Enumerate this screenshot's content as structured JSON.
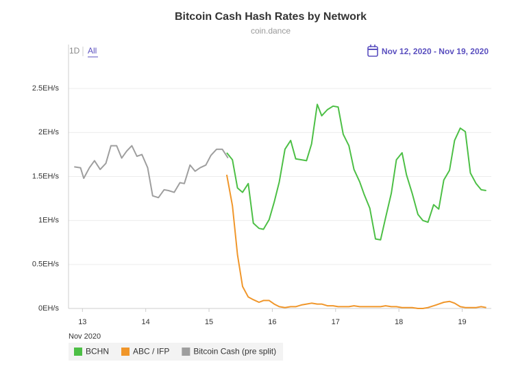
{
  "chart_data": {
    "type": "line",
    "title": "Bitcoin Cash Hash Rates by Network",
    "subtitle": "coin.dance",
    "range_buttons": [
      "1D",
      "All"
    ],
    "date_range": "Nov 12, 2020 - Nov 19, 2020",
    "x_label": "Nov 2020",
    "xlim": [
      12.78,
      19.46
    ],
    "xticks": [
      13,
      14,
      15,
      16,
      17,
      18,
      19
    ],
    "ylim": [
      0,
      3
    ],
    "yticks": [
      {
        "value": 0,
        "label": "0EH/s"
      },
      {
        "value": 0.5,
        "label": "0.5EH/s"
      },
      {
        "value": 1,
        "label": "1EH/s"
      },
      {
        "value": 1.5,
        "label": "1.5EH/s"
      },
      {
        "value": 2,
        "label": "2EH/s"
      },
      {
        "value": 2.5,
        "label": "2.5EH/s"
      }
    ],
    "grid": true,
    "legend": "bottom-left",
    "series": [
      {
        "name": "BCHN",
        "color": "#4cbf45",
        "x": [
          15.28,
          15.37,
          15.45,
          15.53,
          15.62,
          15.7,
          15.79,
          15.86,
          15.95,
          16.03,
          16.11,
          16.2,
          16.29,
          16.37,
          16.46,
          16.54,
          16.62,
          16.71,
          16.78,
          16.87,
          16.96,
          17.04,
          17.12,
          17.21,
          17.29,
          17.38,
          17.45,
          17.54,
          17.63,
          17.71,
          17.79,
          17.88,
          17.96,
          18.05,
          18.12,
          18.21,
          18.3,
          18.38,
          18.46,
          18.55,
          18.63,
          18.71,
          18.8,
          18.88,
          18.97,
          19.05,
          19.13,
          19.22,
          19.3,
          19.38
        ],
        "values": [
          1.77,
          1.69,
          1.37,
          1.32,
          1.42,
          0.97,
          0.91,
          0.9,
          1.01,
          1.21,
          1.44,
          1.81,
          1.91,
          1.7,
          1.69,
          1.68,
          1.87,
          2.32,
          2.19,
          2.26,
          2.3,
          2.29,
          1.98,
          1.85,
          1.58,
          1.44,
          1.3,
          1.14,
          0.79,
          0.78,
          1.03,
          1.31,
          1.69,
          1.77,
          1.52,
          1.31,
          1.07,
          1.0,
          0.98,
          1.18,
          1.13,
          1.46,
          1.57,
          1.91,
          2.05,
          2.01,
          1.54,
          1.42,
          1.35,
          1.34
        ]
      },
      {
        "name": "ABC / IFP",
        "color": "#f0962a",
        "x": [
          15.28,
          15.37,
          15.45,
          15.53,
          15.62,
          15.7,
          15.79,
          15.86,
          15.95,
          16.03,
          16.11,
          16.2,
          16.29,
          16.37,
          16.46,
          16.54,
          16.62,
          16.71,
          16.78,
          16.87,
          16.96,
          17.04,
          17.12,
          17.21,
          17.29,
          17.38,
          17.45,
          17.54,
          17.63,
          17.71,
          17.79,
          17.88,
          17.96,
          18.05,
          18.12,
          18.21,
          18.3,
          18.38,
          18.46,
          18.55,
          18.63,
          18.71,
          18.8,
          18.88,
          18.97,
          19.05,
          19.13,
          19.22,
          19.3,
          19.38
        ],
        "values": [
          1.52,
          1.17,
          0.61,
          0.25,
          0.13,
          0.1,
          0.07,
          0.09,
          0.09,
          0.05,
          0.02,
          0.01,
          0.02,
          0.02,
          0.04,
          0.05,
          0.06,
          0.05,
          0.05,
          0.03,
          0.03,
          0.02,
          0.02,
          0.02,
          0.03,
          0.02,
          0.02,
          0.02,
          0.02,
          0.02,
          0.03,
          0.02,
          0.02,
          0.01,
          0.01,
          0.01,
          0,
          0,
          0.01,
          0.03,
          0.05,
          0.07,
          0.08,
          0.06,
          0.02,
          0.01,
          0.01,
          0.01,
          0.02,
          0.01
        ]
      },
      {
        "name": "Bitcoin Cash (pre split)",
        "color": "#9e9e9e",
        "x": [
          12.87,
          12.97,
          13.02,
          13.11,
          13.19,
          13.28,
          13.37,
          13.45,
          13.54,
          13.62,
          13.7,
          13.78,
          13.86,
          13.94,
          14.03,
          14.11,
          14.2,
          14.29,
          14.36,
          14.45,
          14.54,
          14.61,
          14.7,
          14.78,
          14.86,
          14.95,
          15.03,
          15.12,
          15.21,
          15.3
        ],
        "values": [
          1.61,
          1.6,
          1.48,
          1.6,
          1.68,
          1.58,
          1.65,
          1.85,
          1.85,
          1.71,
          1.79,
          1.85,
          1.73,
          1.75,
          1.6,
          1.28,
          1.26,
          1.35,
          1.34,
          1.32,
          1.43,
          1.42,
          1.63,
          1.56,
          1.6,
          1.63,
          1.74,
          1.81,
          1.81,
          1.71
        ]
      }
    ]
  }
}
